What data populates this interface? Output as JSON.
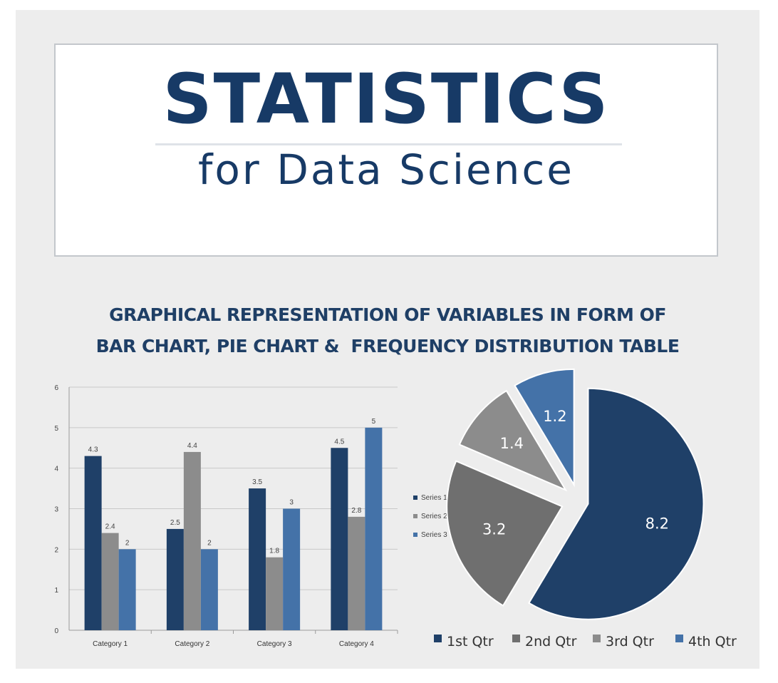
{
  "header": {
    "title": "STATISTICS",
    "subtitle": "for Data Science"
  },
  "heading": {
    "line1": "GRAPHICAL REPRESENTATION OF VARIABLES IN FORM OF",
    "line2": "BAR CHART, PIE CHART &  FREQUENCY DISTRIBUTION TABLE"
  },
  "colors": {
    "navy": "#1f4068",
    "gray": "#8c8c8c",
    "blue": "#4472a8",
    "dark_gray": "#6f6f6f",
    "title_text": "#173a66"
  },
  "chart_data": [
    {
      "type": "bar",
      "categories": [
        "Category 1",
        "Category 2",
        "Category 3",
        "Category 4"
      ],
      "series": [
        {
          "name": "Series 1",
          "values": [
            4.3,
            2.5,
            3.5,
            4.5
          ]
        },
        {
          "name": "Series 2",
          "values": [
            2.4,
            4.4,
            1.8,
            2.8
          ]
        },
        {
          "name": "Series 3",
          "values": [
            2,
            2,
            3,
            5
          ]
        }
      ],
      "yticks": [
        "0",
        "1",
        "2",
        "3",
        "4",
        "5",
        "6"
      ],
      "ylim": [
        0,
        6
      ],
      "grid": true,
      "data_labels": true,
      "legend": {
        "placement": "right",
        "entries": [
          "Series 1",
          "Series 2",
          "Series 3"
        ]
      }
    },
    {
      "type": "pie",
      "exploded": true,
      "slices": [
        {
          "label": "1st Qtr",
          "value": 8.2,
          "text": "8.2"
        },
        {
          "label": "2nd Qtr",
          "value": 3.2,
          "text": "3.2"
        },
        {
          "label": "3rd Qtr",
          "value": 1.4,
          "text": "1.4"
        },
        {
          "label": "4th Qtr",
          "value": 1.2,
          "text": "1.2"
        }
      ],
      "legend": {
        "placement": "bottom",
        "entries": [
          "1st Qtr",
          "2nd Qtr",
          "3rd Qtr",
          "4th Qtr"
        ]
      }
    }
  ]
}
